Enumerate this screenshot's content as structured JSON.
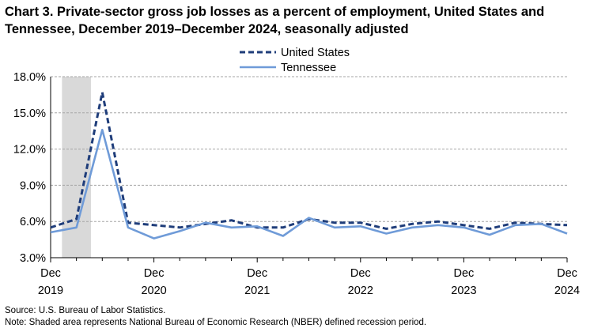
{
  "title": "Chart 3. Private-sector gross job losses as a percent of employment, United States and Tennessee, December 2019–December 2024, seasonally adjusted",
  "footer": {
    "source": "Source: U.S. Bureau of Labor Statistics.",
    "note": "Note: Shaded area represents National Bureau of Economic Research (NBER) defined recession period."
  },
  "chart_data": {
    "type": "line",
    "title": "Chart 3. Private-sector gross job losses as a percent of employment, United States and Tennessee, December 2019–December 2024, seasonally adjusted",
    "xlabel": "",
    "ylabel": "",
    "x": [
      "Dec 2019",
      "Mar 2020",
      "Jun 2020",
      "Sep 2020",
      "Dec 2020",
      "Mar 2021",
      "Jun 2021",
      "Sep 2021",
      "Dec 2021",
      "Mar 2022",
      "Jun 2022",
      "Sep 2022",
      "Dec 2022",
      "Mar 2023",
      "Jun 2023",
      "Sep 2023",
      "Dec 2023",
      "Mar 2024",
      "Jun 2024",
      "Sep 2024",
      "Dec 2024"
    ],
    "x_tick_labels": [
      {
        "index": 0,
        "line1": "Dec",
        "line2": "2019"
      },
      {
        "index": 4,
        "line1": "Dec",
        "line2": "2020"
      },
      {
        "index": 8,
        "line1": "Dec",
        "line2": "2021"
      },
      {
        "index": 12,
        "line1": "Dec",
        "line2": "2022"
      },
      {
        "index": 16,
        "line1": "Dec",
        "line2": "2023"
      },
      {
        "index": 20,
        "line1": "Dec",
        "line2": "2024"
      }
    ],
    "y_ticks": [
      "3.0%",
      "6.0%",
      "9.0%",
      "12.0%",
      "15.0%",
      "18.0%"
    ],
    "ylim": [
      3,
      18
    ],
    "grid": true,
    "legend_position": "top",
    "recession": {
      "start_index": 0.5,
      "end_index": 1.5,
      "color": "#d9d9d9"
    },
    "series": [
      {
        "name": "United States",
        "style": "dashed",
        "color": "#1f3d7a",
        "values": [
          5.5,
          6.2,
          16.7,
          5.9,
          5.7,
          5.5,
          5.8,
          6.1,
          5.5,
          5.5,
          6.2,
          5.9,
          5.9,
          5.4,
          5.8,
          6.0,
          5.7,
          5.4,
          5.9,
          5.8,
          5.7
        ]
      },
      {
        "name": "Tennessee",
        "style": "solid",
        "color": "#6f9bd8",
        "values": [
          5.1,
          5.5,
          13.6,
          5.5,
          4.6,
          5.2,
          5.9,
          5.5,
          5.6,
          4.8,
          6.3,
          5.5,
          5.6,
          5.0,
          5.5,
          5.7,
          5.5,
          4.9,
          5.7,
          5.8,
          5.0
        ]
      }
    ]
  }
}
